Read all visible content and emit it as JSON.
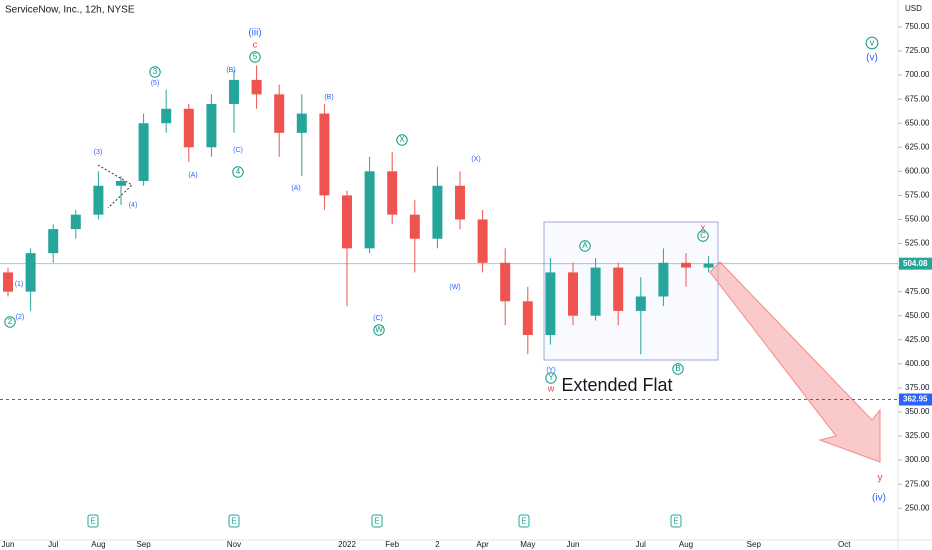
{
  "chart_data": {
    "type": "candlestick",
    "title": "ServiceNow, Inc., 12h, NYSE",
    "currency": "USD",
    "categories": [
      "Jun",
      null,
      "Jul",
      null,
      "Aug",
      null,
      "Sep",
      null,
      null,
      null,
      "Nov",
      null,
      null,
      null,
      null,
      "2022",
      null,
      "Feb",
      null,
      "2",
      null,
      "Apr",
      null,
      "May",
      null,
      "Jun",
      null,
      null,
      "Jul",
      null,
      "Aug",
      null,
      null,
      "Sep",
      null,
      null,
      null,
      "Oct",
      null,
      null
    ],
    "open": [
      495,
      475,
      515,
      540,
      555,
      585,
      590,
      650,
      665,
      625,
      670,
      695,
      680,
      640,
      660,
      575,
      520,
      600,
      555,
      530,
      585,
      550,
      505,
      465,
      430,
      495,
      450,
      500,
      455,
      470,
      505,
      500,
      null,
      null,
      null,
      null,
      null,
      null,
      null,
      null
    ],
    "high": [
      500,
      520,
      545,
      560,
      600,
      595,
      660,
      685,
      670,
      680,
      705,
      710,
      690,
      680,
      670,
      580,
      615,
      620,
      570,
      605,
      600,
      560,
      520,
      480,
      510,
      505,
      510,
      505,
      490,
      520,
      515,
      512,
      null,
      null,
      null,
      null,
      null,
      null,
      null,
      null
    ],
    "low": [
      470,
      455,
      505,
      530,
      550,
      565,
      585,
      640,
      610,
      615,
      640,
      665,
      615,
      595,
      560,
      460,
      515,
      545,
      495,
      520,
      540,
      495,
      440,
      410,
      420,
      440,
      445,
      440,
      410,
      460,
      480,
      495,
      null,
      null,
      null,
      null,
      null,
      null,
      null,
      null
    ],
    "close": [
      475,
      515,
      540,
      555,
      585,
      590,
      650,
      665,
      625,
      670,
      695,
      680,
      640,
      660,
      575,
      520,
      600,
      555,
      530,
      585,
      550,
      505,
      465,
      430,
      495,
      450,
      500,
      455,
      470,
      505,
      500,
      504.08,
      null,
      null,
      null,
      null,
      null,
      null,
      null,
      null
    ],
    "up_color": "#26a69a",
    "down_color": "#ef5350",
    "ylim": [
      217,
      778
    ],
    "yticks": [
      {
        "value": 750,
        "label": "750.00"
      },
      {
        "value": 725,
        "label": "725.00"
      },
      {
        "value": 700,
        "label": "700.00"
      },
      {
        "value": 675,
        "label": "675.00"
      },
      {
        "value": 650,
        "label": "650.00"
      },
      {
        "value": 625,
        "label": "625.00"
      },
      {
        "value": 600,
        "label": "600.00"
      },
      {
        "value": 575,
        "label": "575.00"
      },
      {
        "value": 550,
        "label": "550.00"
      },
      {
        "value": 525,
        "label": "525.00"
      },
      {
        "value": 500,
        "label": "500.00"
      },
      {
        "value": 475,
        "label": "475.00"
      },
      {
        "value": 450,
        "label": "450.00"
      },
      {
        "value": 425,
        "label": "425.00"
      },
      {
        "value": 400,
        "label": "400.00"
      },
      {
        "value": 375,
        "label": "375.00"
      },
      {
        "value": 350,
        "label": "350.00"
      },
      {
        "value": 325,
        "label": "325.00"
      },
      {
        "value": 300,
        "label": "300.00"
      },
      {
        "value": 275,
        "label": "275.00"
      },
      {
        "value": 250,
        "label": "250.00"
      }
    ],
    "last_price": 504.08,
    "last_price_color": "#26a69a",
    "level": 362.95,
    "level_color": "#2962ff",
    "earnings_marker": "E",
    "annotations": [
      "(iii)",
      "c",
      "5",
      "3",
      "(5)",
      "(B)",
      "(C)",
      "4",
      "(3)",
      "(4)",
      "(1)",
      "2",
      "(2)",
      "(A)",
      "(A)",
      "(B)",
      "X",
      "(X)",
      "(W)",
      "(C)",
      "W",
      "A",
      "B",
      "C",
      "x",
      "(Y)",
      "Y",
      "w",
      "Extended Flat",
      "v",
      "(v)",
      "y",
      "(iv)"
    ]
  }
}
